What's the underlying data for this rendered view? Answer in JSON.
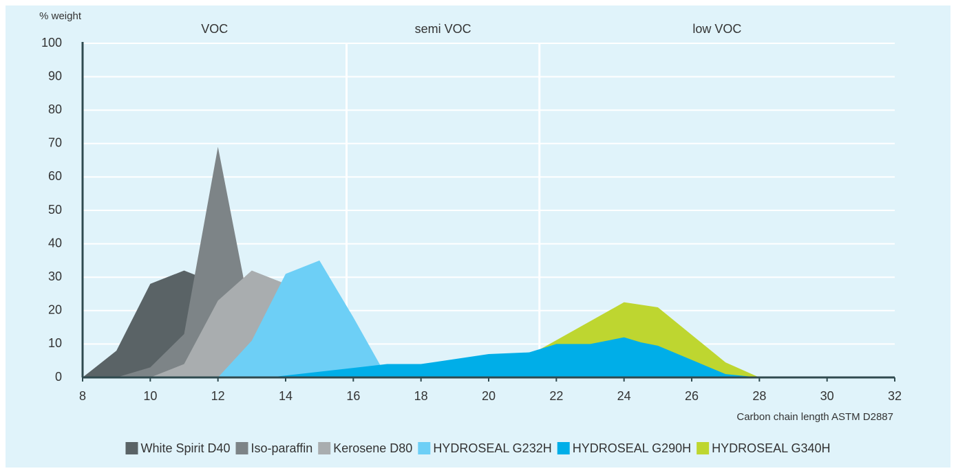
{
  "chart_data": {
    "type": "area",
    "y_label": "% weight",
    "x_label": "Carbon chain length ASTM D2887",
    "xlim": [
      8,
      32
    ],
    "xticks": [
      8,
      10,
      12,
      14,
      16,
      18,
      20,
      22,
      24,
      26,
      28,
      30,
      32
    ],
    "ylim": [
      0,
      100
    ],
    "yticks": [
      0,
      10,
      20,
      30,
      40,
      50,
      60,
      70,
      80,
      90,
      100
    ],
    "grid": true,
    "regions": [
      "VOC",
      "semi VOC",
      "low VOC"
    ],
    "region_bounds": [
      15.8,
      21.5
    ],
    "series": [
      {
        "name": "White Spirit D40",
        "color": "#5a6366",
        "x": [
          8,
          9,
          10,
          11,
          12,
          13
        ],
        "values": [
          0,
          8,
          28,
          32,
          28,
          0
        ]
      },
      {
        "name": "Iso-paraffin",
        "color": "#7d8487",
        "x": [
          9,
          10,
          11,
          12,
          12.75,
          13.5
        ],
        "values": [
          0,
          3,
          13,
          69,
          30,
          0
        ]
      },
      {
        "name": "Kerosene D80",
        "color": "#a9adaf",
        "x": [
          10,
          11,
          12,
          13,
          14,
          15
        ],
        "values": [
          0,
          4,
          23,
          32,
          28,
          0
        ]
      },
      {
        "name": "HYDROSEAL G232H",
        "color": "#6dcff6",
        "x": [
          12,
          13,
          14,
          15,
          16,
          17
        ],
        "values": [
          0,
          11,
          31,
          35,
          18,
          0
        ]
      },
      {
        "name": "HYDROSEAL G290H",
        "color": "#00aee8",
        "x": [
          13.5,
          17,
          18,
          20,
          21.2,
          22,
          23,
          24,
          24.5,
          25,
          27,
          28
        ],
        "values": [
          0,
          4,
          4,
          7,
          7.5,
          10,
          10,
          12,
          10.5,
          9.5,
          1,
          0
        ]
      },
      {
        "name": "HYDROSEAL G340H",
        "color": "#bed630",
        "x": [
          20,
          21.8,
          24,
          25,
          27,
          28
        ],
        "values": [
          0,
          10,
          22.5,
          21,
          4.5,
          0
        ]
      }
    ],
    "draw_order": [
      0,
      1,
      2,
      3,
      5,
      4
    ]
  }
}
